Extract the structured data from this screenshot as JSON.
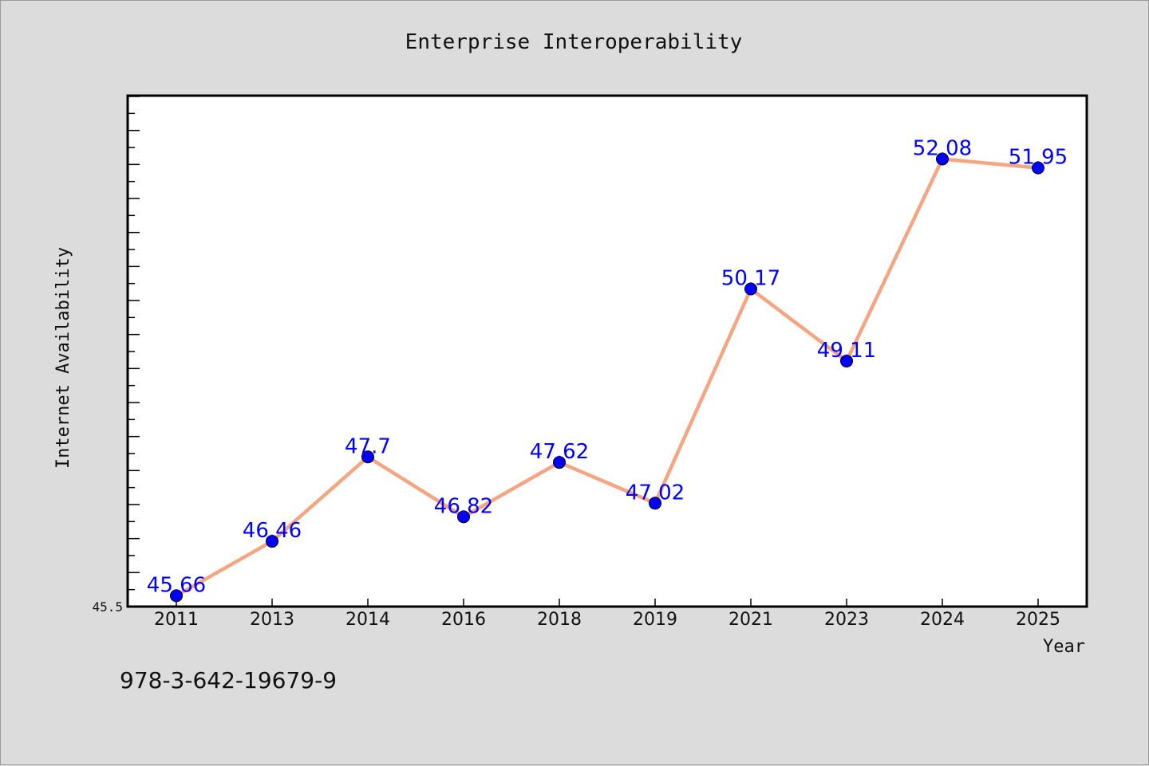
{
  "chart_data": {
    "type": "line",
    "title": "Enterprise Interoperability",
    "xlabel": "Year",
    "ylabel": "Internet Availability",
    "categories": [
      "2011",
      "2013",
      "2014",
      "2016",
      "2018",
      "2019",
      "2021",
      "2023",
      "2024",
      "2025"
    ],
    "series": [
      {
        "values": [
          45.66,
          46.46,
          47.7,
          46.82,
          47.62,
          47.02,
          50.17,
          49.11,
          52.08,
          51.95
        ],
        "data_labels": [
          "45.66",
          "46.46",
          "47.7",
          "46.82",
          "47.62",
          "47.02",
          "50.17",
          "49.11",
          "52.08",
          "51.95"
        ],
        "line_color": "#f4a582",
        "marker_color": "#0000ff"
      }
    ],
    "ylim": [
      45.5,
      53.0
    ],
    "y_min_label": "45.5",
    "grid": false,
    "legend": "none"
  },
  "footnote": "978-3-642-19679-9",
  "colors": {
    "background": "#dcdcdc",
    "plot_background": "#ffffff",
    "line": "#f4a582",
    "marker": "#0000ff",
    "data_label": "#0000ff"
  }
}
